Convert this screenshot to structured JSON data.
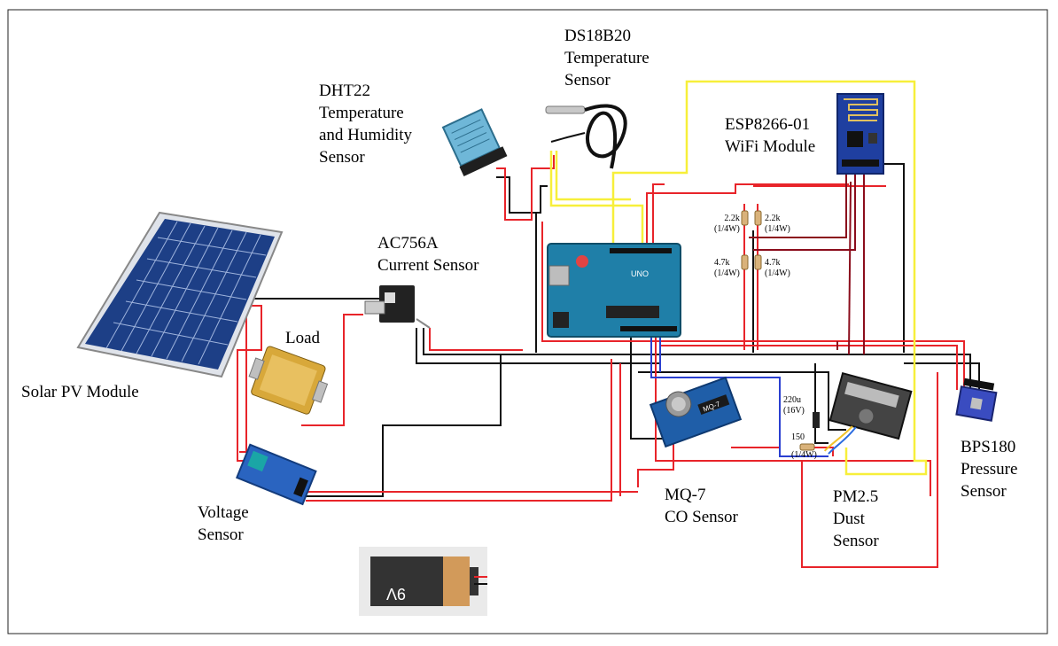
{
  "labels": {
    "ds18b20": [
      "DS18B20",
      "Temperature",
      "Sensor"
    ],
    "dht22": [
      "DHT22",
      "Temperature",
      "and Humidity",
      "Sensor"
    ],
    "esp": [
      "ESP8266-01",
      "WiFi Module"
    ],
    "ac756": [
      "AC756A",
      "Current Sensor"
    ],
    "load": [
      "Load"
    ],
    "solar": [
      "Solar PV Module"
    ],
    "voltage": [
      "Voltage",
      "Sensor"
    ],
    "mq7": [
      "MQ-7",
      "CO Sensor"
    ],
    "pm25": [
      "PM2.5",
      "Dust",
      "Sensor"
    ],
    "bps180": [
      "BPS180",
      "Pressure",
      "Sensor"
    ]
  },
  "resistors": {
    "r1": [
      "2.2k",
      "(1/4W)"
    ],
    "r2": [
      "2.2k",
      "(1/4W)"
    ],
    "r3": [
      "4.7k",
      "(1/4W)"
    ],
    "r4": [
      "4.7k",
      "(1/4W)"
    ],
    "r5": [
      "150",
      "(1/4W)"
    ],
    "cap": [
      "220u",
      "(16V)"
    ]
  },
  "battery_text": "9V",
  "board_text": "UNO",
  "mq7_text": "MQ-7",
  "colors": {
    "red": "#e8242a",
    "darkred": "#8b0d1c",
    "black": "#111111",
    "yellow": "#f7ef3a",
    "blue": "#2a3fd0"
  }
}
